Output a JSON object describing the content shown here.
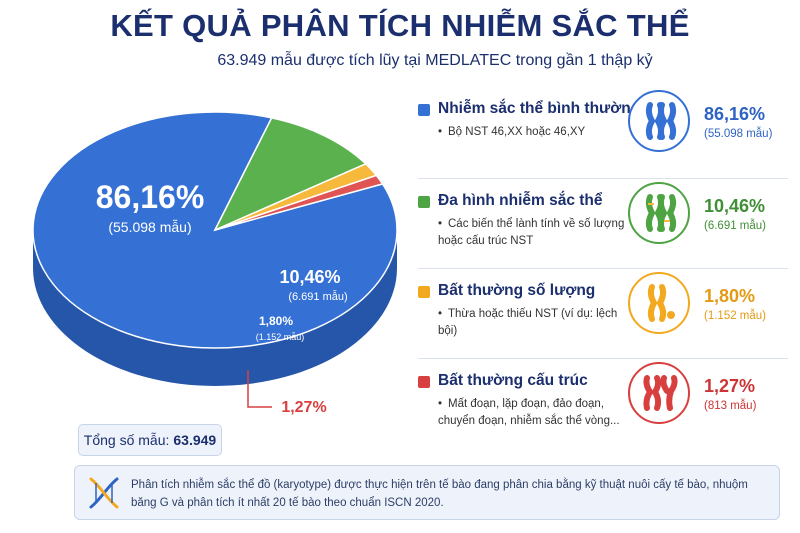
{
  "title": "KẾT QUẢ PHÂN TÍCH NHIỄM SẮC THỂ",
  "subtitle": "63.949 mẫu được tích lũy tại MEDLATEC trong gần 1 thập kỷ",
  "total": {
    "label": "Tổng số mẫu:",
    "value": "63.949"
  },
  "chart_data": {
    "type": "pie",
    "title": "KẾT QUẢ PHÂN TÍCH NHIỄM SẮC THỂ",
    "slices": [
      {
        "name": "Nhiễm sắc thể bình thường",
        "value": 86.16,
        "pct_label": "86,16%",
        "count_label": "(55.098 mẫu)",
        "color": "#3570d4",
        "side": "#2556aa"
      },
      {
        "name": "Đa hình nhiễm sắc thể",
        "value": 10.46,
        "pct_label": "10,46%",
        "count_label": "(6.691 mẫu)",
        "color": "#5bb14e",
        "side": "#3f8a34"
      },
      {
        "name": "Bất thường số lượng",
        "value": 1.8,
        "pct_label": "1,80%",
        "count_label": "(1.152 mẫu)",
        "color": "#f6b93b",
        "side": "#d89a1e"
      },
      {
        "name": "Bất thường cấu trúc",
        "value": 1.27,
        "pct_label": "1,27%",
        "count_label": "(813 mẫu)",
        "color": "#e05454",
        "side": "#b83a3a"
      }
    ]
  },
  "legend": [
    {
      "title": "Nhiễm sắc thể bình thường",
      "desc": [
        "Bộ NST 46,XX hoặc 46,XY"
      ],
      "pct": "86,16%",
      "count": "(55.098 mẫu)",
      "color": "#3570d4",
      "pct_color": "#2e63c4",
      "icon": "normal-chromosome-icon"
    },
    {
      "title": "Đa hình nhiễm sắc thể",
      "desc": [
        "Các biến thể lành tính về số lượng hoặc cấu trúc NST"
      ],
      "pct": "10,46%",
      "count": "(6.691 mẫu)",
      "color": "#4ea443",
      "pct_color": "#3f8f35",
      "icon": "polymorphism-chromosome-icon"
    },
    {
      "title": "Bất thường số lượng",
      "desc": [
        "Thừa hoặc thiếu NST (ví dụ: lệch bội)"
      ],
      "pct": "1,80%",
      "count": "(1.152 mẫu)",
      "color": "#f3a91f",
      "pct_color": "#e39a14",
      "icon": "numerical-abnormality-icon"
    },
    {
      "title": "Bất thường cấu trúc",
      "desc": [
        "Mất đoạn, lặp đoạn, đảo đoạn, chuyển đoạn, nhiễm sắc thể vòng..."
      ],
      "pct": "1,27%",
      "count": "(813 mẫu)",
      "color": "#d84040",
      "pct_color": "#cc3535",
      "icon": "structural-abnormality-icon"
    }
  ],
  "note": "Phân tích nhiễm sắc thể đồ (karyotype) được thực hiện trên tế bào đang phân chia bằng kỹ thuật nuôi cấy tế bào, nhuộm băng G và phân tích ít nhất 20 tế bào theo chuẩn ISCN 2020."
}
